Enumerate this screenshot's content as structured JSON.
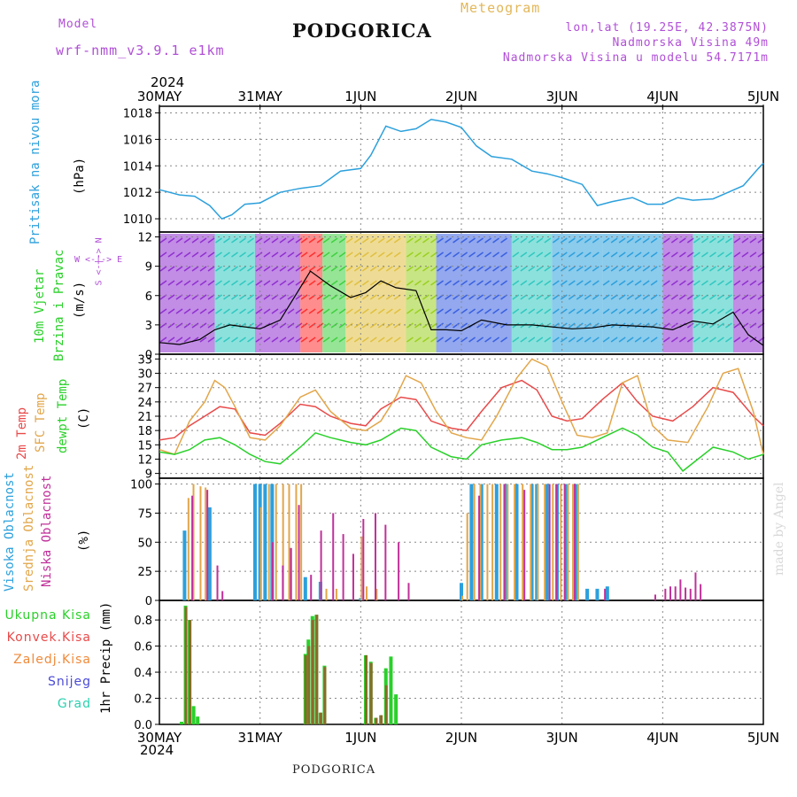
{
  "header": {
    "model_label": "Model",
    "model_value": "wrf-nmm_v3.9.1  e1km",
    "title": "PODGORICA",
    "meteogram_label": "Meteogram",
    "coords": "lon,lat (19.25E, 42.3875N)",
    "elevation": "Nadmorska Visina 49m",
    "model_elevation": "Nadmorska Visina u modelu 54.7171m",
    "bottom_name": "PODGORICA",
    "signature": "made by Angel"
  },
  "time_axis": {
    "year": "2024",
    "ticks": [
      "30MAY",
      "31MAY",
      "1JUN",
      "2JUN",
      "3JUN",
      "4JUN",
      "5JUN"
    ]
  },
  "panels": {
    "pressure": {
      "ylabel_name": "Pritisak na nivou mora",
      "ylabel_unit": "(hPa)"
    },
    "wind": {
      "ylabel_name": "10m Vjetar",
      "ylabel_name2": "Brzina i Pravac",
      "ylabel_unit": "(m/s)",
      "compass": "W <-|-> E",
      "compass2": "S <-|-> N"
    },
    "temp": {
      "ylabel1": "2m Temp",
      "ylabel2": "SFC Temp",
      "ylabel3": "dewpt Temp",
      "ylabel_unit": "(C)"
    },
    "cloud": {
      "ylabel1": "Visoka Oblacnost",
      "ylabel2": "Srednja Oblacnost",
      "ylabel3": "Niska Oblacnost",
      "ylabel_unit": "(%)"
    },
    "precip": {
      "ylabel": "1hr Precip (mm)",
      "legend": [
        "Ukupna Kisa",
        "Konvek.Kisa",
        "Zaledj.Kisa",
        "Snijeg",
        "Grad"
      ]
    }
  },
  "colors": {
    "pressure": "#2ca0dc",
    "temp2m": "#e84a4a",
    "sfc": "#e2a64a",
    "dewpt": "#2ad02a",
    "cloud_high": "#2ca0dc",
    "cloud_mid": "#e2a64a",
    "cloud_low": "#c0309a",
    "rain_total": "#2ad02a",
    "rain_conv": "#e84a4a",
    "rain_frz": "#f08a3a",
    "snow": "#4a4ad6",
    "hail": "#2ad0b0",
    "purple_text": "#b04fd6",
    "gold_text": "#e2b75a"
  },
  "chart_data": [
    {
      "type": "line",
      "ylabel": "Pritisak na nivou mora (hPa)",
      "ylim": [
        1009,
        1018.5
      ],
      "yticks": [
        1010,
        1012,
        1014,
        1016,
        1018
      ],
      "x_unit": "days since 30MAY 00UTC",
      "series": [
        {
          "name": "Pritisak na nivou mora",
          "x": [
            0,
            0.2,
            0.35,
            0.5,
            0.62,
            0.72,
            0.85,
            1.0,
            1.2,
            1.4,
            1.6,
            1.8,
            2.0,
            2.1,
            2.25,
            2.4,
            2.55,
            2.7,
            2.85,
            3.0,
            3.15,
            3.3,
            3.5,
            3.7,
            3.85,
            4.0,
            4.2,
            4.35,
            4.5,
            4.7,
            4.85,
            5.0,
            5.15,
            5.3,
            5.5,
            5.65,
            5.8,
            5.95,
            6.0
          ],
          "values": [
            1012.2,
            1011.8,
            1011.7,
            1011.0,
            1010.0,
            1010.3,
            1011.1,
            1011.2,
            1012.0,
            1012.3,
            1012.5,
            1013.6,
            1013.8,
            1014.8,
            1017.0,
            1016.6,
            1016.8,
            1017.5,
            1017.3,
            1016.9,
            1015.5,
            1014.7,
            1014.5,
            1013.6,
            1013.4,
            1013.1,
            1012.6,
            1011.0,
            1011.3,
            1011.6,
            1011.1,
            1011.1,
            1011.6,
            1011.4,
            1011.5,
            1012.0,
            1012.5,
            1013.8,
            1014.2
          ]
        }
      ]
    },
    {
      "type": "line",
      "ylabel": "10m Vjetar Brzina i Pravac (m/s)",
      "ylim": [
        0,
        12.5
      ],
      "yticks": [
        0,
        3,
        6,
        9,
        12
      ],
      "x_unit": "days since 30MAY 00UTC",
      "series": [
        {
          "name": "Brzina",
          "x": [
            0,
            0.2,
            0.4,
            0.55,
            0.7,
            0.85,
            1.0,
            1.2,
            1.35,
            1.5,
            1.7,
            1.9,
            2.05,
            2.2,
            2.35,
            2.55,
            2.7,
            2.85,
            3.0,
            3.2,
            3.45,
            3.7,
            3.9,
            4.1,
            4.3,
            4.5,
            4.7,
            4.9,
            5.1,
            5.3,
            5.5,
            5.7,
            5.85,
            6.0
          ],
          "values": [
            1.2,
            1.0,
            1.5,
            2.5,
            3.0,
            2.8,
            2.6,
            3.5,
            6.0,
            8.5,
            7.0,
            5.8,
            6.3,
            7.5,
            6.8,
            6.5,
            2.5,
            2.5,
            2.4,
            3.5,
            3.0,
            3.0,
            2.8,
            2.6,
            2.7,
            3.0,
            2.9,
            2.8,
            2.5,
            3.4,
            3.1,
            4.3,
            2.0,
            0.9
          ]
        }
      ],
      "wind_direction_segments": [
        {
          "from": 0.0,
          "to": 0.55,
          "color": "#9030d0"
        },
        {
          "from": 0.55,
          "to": 0.95,
          "color": "#30c8c0"
        },
        {
          "from": 0.95,
          "to": 1.4,
          "color": "#9030d0"
        },
        {
          "from": 1.4,
          "to": 1.62,
          "color": "#ff3030"
        },
        {
          "from": 1.62,
          "to": 1.85,
          "color": "#40d040"
        },
        {
          "from": 1.85,
          "to": 2.45,
          "color": "#e0c040"
        },
        {
          "from": 2.45,
          "to": 2.75,
          "color": "#9ad020"
        },
        {
          "from": 2.75,
          "to": 3.5,
          "color": "#3a60e0"
        },
        {
          "from": 3.5,
          "to": 3.9,
          "color": "#30c8c0"
        },
        {
          "from": 3.9,
          "to": 4.4,
          "color": "#2ca0dc"
        },
        {
          "from": 4.4,
          "to": 5.0,
          "color": "#2ca0dc"
        },
        {
          "from": 5.0,
          "to": 5.3,
          "color": "#9030d0"
        },
        {
          "from": 5.3,
          "to": 5.7,
          "color": "#30c8c0"
        },
        {
          "from": 5.7,
          "to": 6.0,
          "color": "#9030d0"
        }
      ]
    },
    {
      "type": "line",
      "ylabel": "2m Temp / SFC Temp / dewpt Temp (C)",
      "ylim": [
        8,
        34
      ],
      "yticks": [
        9,
        12,
        15,
        18,
        21,
        24,
        27,
        30,
        33
      ],
      "x_unit": "days since 30MAY 00UTC",
      "series": [
        {
          "name": "2m Temp",
          "x": [
            0,
            0.15,
            0.3,
            0.45,
            0.6,
            0.75,
            0.9,
            1.05,
            1.2,
            1.4,
            1.55,
            1.7,
            1.9,
            2.05,
            2.2,
            2.4,
            2.55,
            2.7,
            2.9,
            3.05,
            3.2,
            3.4,
            3.6,
            3.75,
            3.9,
            4.05,
            4.2,
            4.4,
            4.6,
            4.75,
            4.9,
            5.1,
            5.3,
            5.5,
            5.7,
            5.9,
            6.0
          ],
          "values": [
            16.0,
            16.5,
            19.0,
            21.0,
            23.0,
            22.5,
            17.5,
            17.0,
            19.5,
            23.5,
            23.0,
            21.0,
            19.5,
            19.0,
            22.5,
            25.0,
            24.5,
            20.0,
            18.5,
            18.0,
            22.0,
            27.0,
            28.5,
            26.5,
            21.0,
            20.0,
            20.5,
            24.5,
            28.0,
            24.0,
            21.0,
            20.0,
            23.0,
            27.0,
            26.0,
            21.0,
            19.0
          ]
        },
        {
          "name": "SFC Temp",
          "x": [
            0,
            0.15,
            0.3,
            0.45,
            0.55,
            0.65,
            0.75,
            0.9,
            1.05,
            1.2,
            1.4,
            1.55,
            1.7,
            1.9,
            2.05,
            2.2,
            2.35,
            2.45,
            2.6,
            2.75,
            2.9,
            3.05,
            3.2,
            3.35,
            3.55,
            3.7,
            3.85,
            4.0,
            4.15,
            4.3,
            4.45,
            4.6,
            4.75,
            4.9,
            5.05,
            5.25,
            5.45,
            5.6,
            5.75,
            5.9,
            6.0
          ],
          "values": [
            14.0,
            13.0,
            20.0,
            24.0,
            28.5,
            27.0,
            23.0,
            16.5,
            16.0,
            19.0,
            25.0,
            26.5,
            22.0,
            18.5,
            18.0,
            20.0,
            25.0,
            29.5,
            28.0,
            22.0,
            17.5,
            16.5,
            16.0,
            21.0,
            29.0,
            33.0,
            31.5,
            24.0,
            17.0,
            16.5,
            17.5,
            28.0,
            29.5,
            19.0,
            16.0,
            15.5,
            23.0,
            30.0,
            31.0,
            22.0,
            13.0
          ]
        },
        {
          "name": "dewpt Temp",
          "x": [
            0,
            0.15,
            0.3,
            0.45,
            0.6,
            0.75,
            0.9,
            1.05,
            1.2,
            1.4,
            1.55,
            1.7,
            1.9,
            2.05,
            2.2,
            2.4,
            2.55,
            2.7,
            2.9,
            3.05,
            3.2,
            3.4,
            3.6,
            3.75,
            3.9,
            4.05,
            4.2,
            4.4,
            4.6,
            4.75,
            4.9,
            5.05,
            5.2,
            5.35,
            5.5,
            5.7,
            5.85,
            6.0
          ],
          "values": [
            13.5,
            13.0,
            14.0,
            16.0,
            16.5,
            15.0,
            13.0,
            11.5,
            11.0,
            14.5,
            17.5,
            16.5,
            15.5,
            15.0,
            16.0,
            18.5,
            18.0,
            14.5,
            12.5,
            12.0,
            15.0,
            16.0,
            16.5,
            15.5,
            14.0,
            14.0,
            14.5,
            16.5,
            18.5,
            17.0,
            14.5,
            13.5,
            9.5,
            12.0,
            14.5,
            13.5,
            12.0,
            13.0
          ]
        }
      ]
    },
    {
      "type": "bar",
      "ylabel": "Visoka / Srednja / Niska Oblacnost (%)",
      "ylim": [
        0,
        105
      ],
      "yticks": [
        0,
        25,
        50,
        75,
        100
      ],
      "x_unit": "days since 30MAY 00UTC",
      "series": [
        {
          "name": "Visoka Oblacnost",
          "x": [
            0.25,
            0.5,
            0.95,
            1.0,
            1.05,
            1.12,
            1.3,
            1.45,
            1.6,
            2.0,
            3.0,
            3.1,
            3.2,
            3.35,
            3.45,
            3.55,
            3.7,
            3.75,
            3.85,
            3.95,
            4.05,
            4.15,
            4.25,
            4.35,
            4.45
          ],
          "values": [
            60,
            80,
            100,
            100,
            100,
            100,
            45,
            20,
            16,
            2,
            15,
            100,
            100,
            100,
            100,
            100,
            100,
            100,
            100,
            100,
            100,
            100,
            10,
            10,
            12
          ]
        },
        {
          "name": "Srednja Oblacnost",
          "x": [
            0.28,
            0.33,
            0.4,
            0.45,
            1.0,
            1.08,
            1.15,
            1.22,
            1.28,
            1.35,
            1.4,
            1.65,
            1.75,
            2.0,
            2.05,
            2.15,
            3.0,
            3.05,
            3.12,
            3.18,
            3.25,
            3.3,
            3.38,
            3.45,
            3.52,
            3.6,
            3.68,
            3.75,
            3.82,
            3.9,
            3.98,
            4.05,
            4.1,
            4.15
          ],
          "values": [
            88,
            100,
            98,
            97,
            80,
            100,
            100,
            100,
            100,
            100,
            100,
            10,
            10,
            55,
            12,
            10,
            4,
            75,
            100,
            100,
            100,
            100,
            100,
            100,
            100,
            100,
            100,
            100,
            100,
            100,
            100,
            100,
            100,
            100
          ]
        },
        {
          "name": "Niska Oblacnost",
          "x": [
            0.3,
            0.45,
            0.55,
            0.6,
            1.1,
            1.2,
            1.28,
            1.36,
            1.48,
            1.58,
            1.7,
            1.8,
            1.9,
            2.0,
            2.12,
            2.22,
            2.35,
            2.45,
            3.15,
            3.4,
            3.6,
            3.85,
            3.92,
            4.0,
            4.1,
            4.4,
            4.9,
            5.0,
            5.05,
            5.1,
            5.15,
            5.2,
            5.25,
            5.3,
            5.35
          ],
          "values": [
            90,
            95,
            30,
            8,
            50,
            30,
            45,
            82,
            22,
            60,
            75,
            57,
            40,
            70,
            75,
            65,
            50,
            15,
            90,
            100,
            95,
            100,
            100,
            100,
            100,
            10,
            5,
            10,
            12,
            12,
            18,
            11,
            10,
            24,
            14
          ]
        }
      ]
    },
    {
      "type": "bar",
      "ylabel": "1hr Precip (mm)",
      "ylim": [
        0,
        0.95
      ],
      "yticks": [
        0.0,
        0.2,
        0.4,
        0.6,
        0.8
      ],
      "x_unit": "days since 30MAY 00UTC",
      "series": [
        {
          "name": "Ukupna Kisa",
          "x": [
            0.22,
            0.26,
            0.3,
            0.34,
            0.38,
            0.42,
            1.45,
            1.48,
            1.52,
            1.56,
            1.6,
            1.64,
            1.68,
            2.05,
            2.1,
            2.15,
            2.2,
            2.25,
            2.3,
            2.35,
            2.4,
            2.45
          ],
          "values": [
            0.02,
            0.91,
            0.8,
            0.14,
            0.06,
            0.0,
            0.54,
            0.65,
            0.83,
            0.84,
            0.09,
            0.45,
            0.0,
            0.53,
            0.48,
            0.05,
            0.07,
            0.43,
            0.52,
            0.23,
            0.0,
            0.0
          ]
        },
        {
          "name": "Konvek.Kisa",
          "x": [
            0.26,
            0.3,
            1.45,
            1.48,
            1.52,
            1.56,
            1.6,
            1.64,
            2.05,
            2.1,
            2.15,
            2.2,
            2.25
          ],
          "values": [
            0.9,
            0.8,
            0.53,
            0.6,
            0.8,
            0.84,
            0.09,
            0.44,
            0.53,
            0.47,
            0.05,
            0.07,
            0.3
          ]
        }
      ]
    }
  ]
}
